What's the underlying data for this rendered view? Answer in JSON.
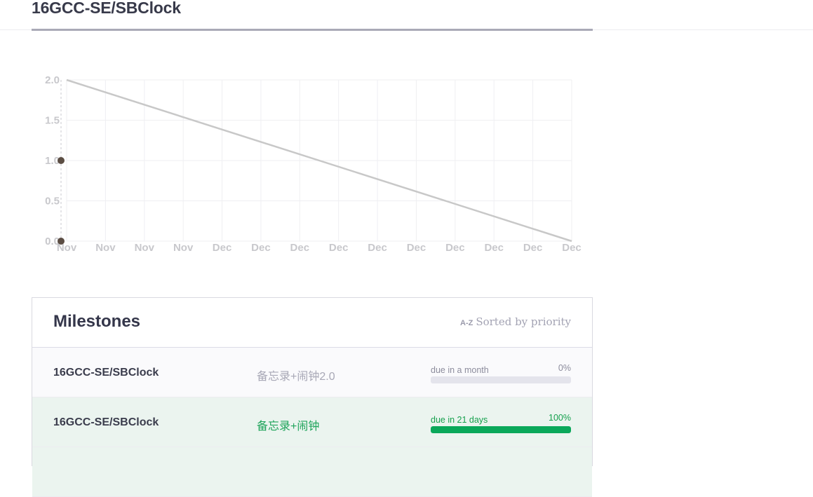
{
  "page": {
    "title": "16GCC-SE/SBClock"
  },
  "chart_data": {
    "type": "line",
    "x_labels": [
      "Nov",
      "Nov",
      "Nov",
      "Nov",
      "Dec",
      "Dec",
      "Dec",
      "Dec",
      "Dec",
      "Dec",
      "Dec",
      "Dec",
      "Dec",
      "Dec"
    ],
    "ylim": [
      0,
      2
    ],
    "y_ticks": [
      "0.0",
      "0.5",
      "1.0",
      "1.5",
      "2.0"
    ],
    "series": [
      {
        "values": [
          2.0,
          0.0
        ],
        "kind": "ideal",
        "x_index": [
          0,
          13
        ]
      }
    ],
    "points": [
      1.0,
      0.0
    ],
    "grid": true
  },
  "milestones": {
    "title": "Milestones",
    "sort_icon": "A-Z",
    "sort_label": "Sorted by priority",
    "rows": [
      {
        "repo": "16GCC-SE/SBClock",
        "name": "备忘录+闹钟2.0",
        "due": "due in a month",
        "percent_label": "0%",
        "percent": 0
      },
      {
        "repo": "16GCC-SE/SBClock",
        "name": "备忘录+闹钟",
        "due": "due in 21 days",
        "percent_label": "100%",
        "percent": 100
      }
    ]
  },
  "colors": {
    "accent": "#0aa85a",
    "line": "#c8c8c8",
    "point": "#5b4d43"
  }
}
